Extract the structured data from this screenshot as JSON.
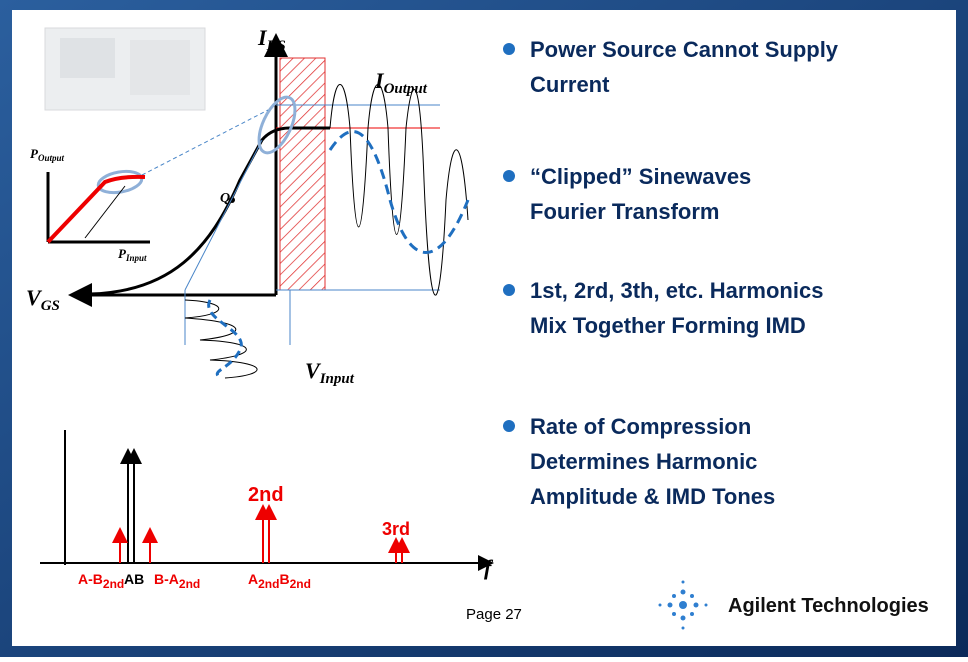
{
  "diagram": {
    "ids": {
      "main": "I",
      "sub": "DS"
    },
    "ioutput": {
      "main": "I",
      "sub": "Output"
    },
    "vgs": {
      "main": "V",
      "sub": "GS"
    },
    "vinput": {
      "main": "V",
      "sub": "Input"
    },
    "poutput": {
      "main": "P",
      "sub": "Output"
    },
    "pinput": {
      "main": "P",
      "sub": "Input"
    },
    "q": "Q",
    "f": "f",
    "spectrum": {
      "amb": {
        "main": "A-B",
        "sub": "2nd"
      },
      "ab": "AB",
      "bma": {
        "main": "B-A",
        "sub": "2nd"
      },
      "a2": {
        "main": "A",
        "sub": "2nd"
      },
      "b2": {
        "main": "B",
        "sub": "2nd"
      },
      "second": "2nd",
      "third": "3rd"
    }
  },
  "bullets": [
    [
      "Power Source Cannot Supply",
      "Current"
    ],
    [
      "“Clipped” Sinewaves",
      "Fourier Transform"
    ],
    [
      "1st, 2rd, 3th, etc. Harmonics",
      "Mix Together Forming IMD"
    ],
    [
      "Rate of Compression",
      "Determines Harmonic",
      "Amplitude & IMD Tones"
    ]
  ],
  "footer": {
    "page": "Page 27",
    "logo": "Agilent Technologies"
  }
}
